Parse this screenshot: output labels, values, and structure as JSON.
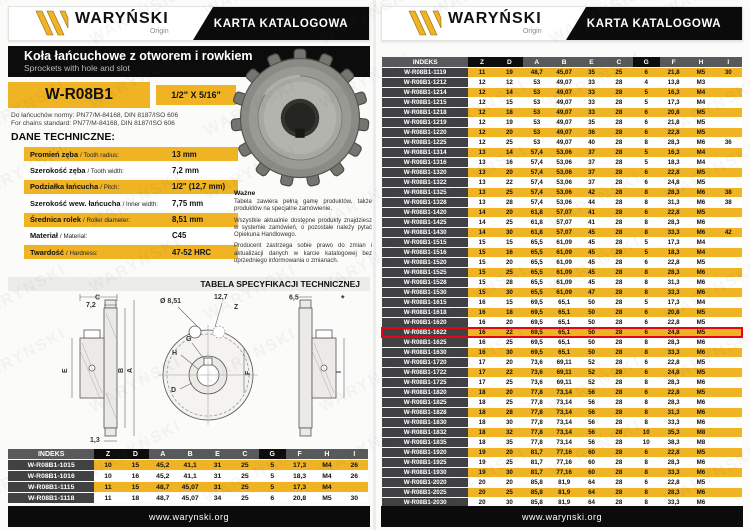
{
  "colors": {
    "accent_yellow": "#F0B323",
    "highlight_red": "#E30613",
    "header_gray": "#58595B",
    "index_dark": "#414042"
  },
  "brand": {
    "logo_text": "WARYŃSKI",
    "logo_sub": "Origin",
    "banner": "KARTA KATALOGOWA",
    "watermark": "WARYŃSKI"
  },
  "footer": {
    "url": "www.warynski.org"
  },
  "page_left": {
    "title": "Koła łańcuchowe z otworem i rowkiem",
    "subtitle": "Sprockets with hole and slot",
    "product_code": "W-R08B1",
    "size": "1/2\" X 5/16\"",
    "norms_line1": "Do łańcuchów normy: PN77/M-84168, DIN 8187/ISO 606",
    "norms_line2": "For chains standard: PN77/M-84168, DIN 8187/ISO 606",
    "tech_heading": "DANE TECHNICZNE:",
    "specs": [
      {
        "pl": "Promień zęba",
        "en": "/ Tooth radius:",
        "value": "13 mm"
      },
      {
        "pl": "Szerokość zęba",
        "en": "/ Tooth width:",
        "value": "7,2 mm"
      },
      {
        "pl": "Podziałka łańcucha",
        "en": "/ Pitch:",
        "value": "1/2\" (12,7 mm)"
      },
      {
        "pl": "Szerokość wew. łańcucha",
        "en": "/ Inner width:",
        "value": "7,75 mm"
      },
      {
        "pl": "Średnica rolek",
        "en": "/ Roller diameter:",
        "value": "8,51 mm"
      },
      {
        "pl": "Materiał",
        "en": "/ Material:",
        "value": "C45"
      },
      {
        "pl": "Twardość",
        "en": "/ Hardness:",
        "value": "47-52 HRC"
      }
    ],
    "note": {
      "title": "Ważne",
      "paragraphs": [
        "Tabela zawiera pełną gamę produktów, także produktów na specjalne zamówienie.",
        "Wszystkie aktualnie dostępne produkty znajdziesz w systemie zamówień, o pozostałe należy pytać Opiekuna Handlowego.",
        "Producent zastrzega sobie prawo do zmian i aktualizacji danych w karcie katalogowej bez uprzedniego informowania o zmianach."
      ]
    },
    "spec_table_heading": "TABELA SPECYFIKACJI TECHNICZNEJ",
    "drawing": {
      "labels": [
        "C",
        "7,2",
        "E",
        "B",
        "A",
        "1,3",
        "Ø 8,51",
        "12,7",
        "Z",
        "G",
        "H",
        "D",
        "F",
        "6,5",
        "*",
        "I"
      ]
    },
    "table": {
      "headers": [
        "INDEKS",
        "Z",
        "D",
        "A",
        "B",
        "E",
        "C",
        "G",
        "F",
        "H",
        "I"
      ],
      "rows": [
        [
          "W-R08B1-1015",
          "10",
          "15",
          "45,2",
          "41,1",
          "31",
          "25",
          "5",
          "17,3",
          "M4",
          "26"
        ],
        [
          "W-R08B1-1016",
          "10",
          "16",
          "45,2",
          "41,1",
          "31",
          "25",
          "5",
          "18,3",
          "M4",
          "26"
        ],
        [
          "W-R08B1-1115",
          "11",
          "15",
          "48,7",
          "45,07",
          "31",
          "25",
          "5",
          "17,3",
          "M4",
          ""
        ],
        [
          "W-R08B1-1118",
          "11",
          "18",
          "48,7",
          "45,07",
          "34",
          "25",
          "6",
          "20,8",
          "M5",
          "30"
        ]
      ]
    }
  },
  "page_right": {
    "table": {
      "headers": [
        "INDEKS",
        "Z",
        "D",
        "A",
        "B",
        "E",
        "C",
        "G",
        "F",
        "H",
        "I"
      ],
      "highlight": "W-R08B1-1622",
      "rows": [
        [
          "W-R08B1-1119",
          "11",
          "19",
          "48,7",
          "45,07",
          "35",
          "25",
          "6",
          "21,8",
          "M5",
          "30"
        ],
        [
          "W-R08B1-1212",
          "12",
          "12",
          "53",
          "49,07",
          "33",
          "28",
          "4",
          "13,8",
          "M3",
          ""
        ],
        [
          "W-R08B1-1214",
          "12",
          "14",
          "53",
          "49,07",
          "33",
          "28",
          "5",
          "16,3",
          "M4",
          ""
        ],
        [
          "W-R08B1-1215",
          "12",
          "15",
          "53",
          "49,07",
          "33",
          "28",
          "5",
          "17,3",
          "M4",
          ""
        ],
        [
          "W-R08B1-1218",
          "12",
          "18",
          "53",
          "49,07",
          "33",
          "28",
          "6",
          "20,8",
          "M5",
          ""
        ],
        [
          "W-R08B1-1219",
          "12",
          "19",
          "53",
          "49,07",
          "35",
          "28",
          "6",
          "21,8",
          "M5",
          ""
        ],
        [
          "W-R08B1-1220",
          "12",
          "20",
          "53",
          "49,07",
          "36",
          "28",
          "6",
          "22,8",
          "M5",
          ""
        ],
        [
          "W-R08B1-1225",
          "12",
          "25",
          "53",
          "49,07",
          "40",
          "28",
          "8",
          "28,3",
          "M6",
          "36"
        ],
        [
          "W-R08B1-1314",
          "13",
          "14",
          "57,4",
          "53,06",
          "37",
          "28",
          "5",
          "16,3",
          "M4",
          ""
        ],
        [
          "W-R08B1-1316",
          "13",
          "16",
          "57,4",
          "53,06",
          "37",
          "28",
          "5",
          "18,3",
          "M4",
          ""
        ],
        [
          "W-R08B1-1320",
          "13",
          "20",
          "57,4",
          "53,06",
          "37",
          "28",
          "6",
          "22,8",
          "M5",
          ""
        ],
        [
          "W-R08B1-1322",
          "13",
          "22",
          "57,4",
          "53,06",
          "37",
          "28",
          "6",
          "24,8",
          "M5",
          ""
        ],
        [
          "W-R08B1-1325",
          "13",
          "25",
          "57,4",
          "53,06",
          "42",
          "28",
          "8",
          "28,3",
          "M6",
          "38"
        ],
        [
          "W-R08B1-1328",
          "13",
          "28",
          "57,4",
          "53,06",
          "44",
          "28",
          "8",
          "31,3",
          "M6",
          "38"
        ],
        [
          "W-R08B1-1420",
          "14",
          "20",
          "61,8",
          "57,07",
          "41",
          "28",
          "6",
          "22,8",
          "M5",
          ""
        ],
        [
          "W-R08B1-1425",
          "14",
          "25",
          "61,8",
          "57,07",
          "41",
          "28",
          "8",
          "28,3",
          "M6",
          ""
        ],
        [
          "W-R08B1-1430",
          "14",
          "30",
          "61,8",
          "57,07",
          "45",
          "28",
          "8",
          "33,3",
          "M6",
          "42"
        ],
        [
          "W-R08B1-1515",
          "15",
          "15",
          "65,5",
          "61,09",
          "45",
          "28",
          "5",
          "17,3",
          "M4",
          ""
        ],
        [
          "W-R08B1-1516",
          "15",
          "16",
          "65,5",
          "61,09",
          "45",
          "28",
          "5",
          "18,3",
          "M4",
          ""
        ],
        [
          "W-R08B1-1520",
          "15",
          "20",
          "65,5",
          "61,09",
          "45",
          "28",
          "6",
          "22,8",
          "M5",
          ""
        ],
        [
          "W-R08B1-1525",
          "15",
          "25",
          "65,5",
          "61,09",
          "45",
          "28",
          "8",
          "28,3",
          "M6",
          ""
        ],
        [
          "W-R08B1-1528",
          "15",
          "28",
          "65,5",
          "61,09",
          "45",
          "28",
          "8",
          "31,3",
          "M6",
          ""
        ],
        [
          "W-R08B1-1530",
          "15",
          "30",
          "65,5",
          "61,09",
          "47",
          "28",
          "8",
          "33,3",
          "M6",
          ""
        ],
        [
          "W-R08B1-1615",
          "16",
          "15",
          "69,5",
          "65,1",
          "50",
          "28",
          "5",
          "17,3",
          "M4",
          ""
        ],
        [
          "W-R08B1-1618",
          "16",
          "18",
          "69,5",
          "65,1",
          "50",
          "28",
          "6",
          "20,8",
          "M5",
          ""
        ],
        [
          "W-R08B1-1620",
          "16",
          "20",
          "69,5",
          "65,1",
          "50",
          "28",
          "6",
          "22,8",
          "M5",
          ""
        ],
        [
          "W-R08B1-1622",
          "16",
          "22",
          "69,5",
          "65,1",
          "50",
          "28",
          "6",
          "24,8",
          "M5",
          ""
        ],
        [
          "W-R08B1-1625",
          "16",
          "25",
          "69,5",
          "65,1",
          "50",
          "28",
          "8",
          "28,3",
          "M6",
          ""
        ],
        [
          "W-R08B1-1630",
          "16",
          "30",
          "69,5",
          "65,1",
          "50",
          "28",
          "8",
          "33,3",
          "M6",
          ""
        ],
        [
          "W-R08B1-1720",
          "17",
          "20",
          "73,6",
          "69,11",
          "52",
          "28",
          "6",
          "22,8",
          "M5",
          ""
        ],
        [
          "W-R08B1-1722",
          "17",
          "22",
          "73,6",
          "69,11",
          "52",
          "28",
          "6",
          "24,8",
          "M5",
          ""
        ],
        [
          "W-R08B1-1725",
          "17",
          "25",
          "73,6",
          "69,11",
          "52",
          "28",
          "8",
          "28,3",
          "M6",
          ""
        ],
        [
          "W-R08B1-1820",
          "18",
          "20",
          "77,8",
          "73,14",
          "56",
          "28",
          "6",
          "22,8",
          "M5",
          ""
        ],
        [
          "W-R08B1-1825",
          "18",
          "25",
          "77,8",
          "73,14",
          "56",
          "28",
          "8",
          "28,3",
          "M6",
          ""
        ],
        [
          "W-R08B1-1828",
          "18",
          "28",
          "77,8",
          "73,14",
          "56",
          "28",
          "8",
          "31,3",
          "M6",
          ""
        ],
        [
          "W-R08B1-1830",
          "18",
          "30",
          "77,8",
          "73,14",
          "56",
          "28",
          "8",
          "33,3",
          "M6",
          ""
        ],
        [
          "W-R08B1-1832",
          "18",
          "32",
          "77,8",
          "73,14",
          "56",
          "28",
          "10",
          "35,3",
          "M8",
          ""
        ],
        [
          "W-R08B1-1835",
          "18",
          "35",
          "77,8",
          "73,14",
          "56",
          "28",
          "10",
          "38,3",
          "M8",
          ""
        ],
        [
          "W-R08B1-1920",
          "19",
          "20",
          "81,7",
          "77,16",
          "60",
          "28",
          "6",
          "22,8",
          "M5",
          ""
        ],
        [
          "W-R08B1-1925",
          "19",
          "25",
          "81,7",
          "77,16",
          "60",
          "28",
          "8",
          "28,3",
          "M6",
          ""
        ],
        [
          "W-R08B1-1930",
          "19",
          "30",
          "81,7",
          "77,16",
          "60",
          "28",
          "8",
          "33,3",
          "M6",
          ""
        ],
        [
          "W-R08B1-2020",
          "20",
          "20",
          "85,8",
          "81,9",
          "64",
          "28",
          "6",
          "22,8",
          "M5",
          ""
        ],
        [
          "W-R08B1-2025",
          "20",
          "25",
          "85,8",
          "81,9",
          "64",
          "28",
          "8",
          "28,3",
          "M6",
          ""
        ],
        [
          "W-R08B1-2030",
          "20",
          "30",
          "85,8",
          "81,9",
          "64",
          "28",
          "8",
          "33,3",
          "M6",
          ""
        ]
      ]
    }
  }
}
